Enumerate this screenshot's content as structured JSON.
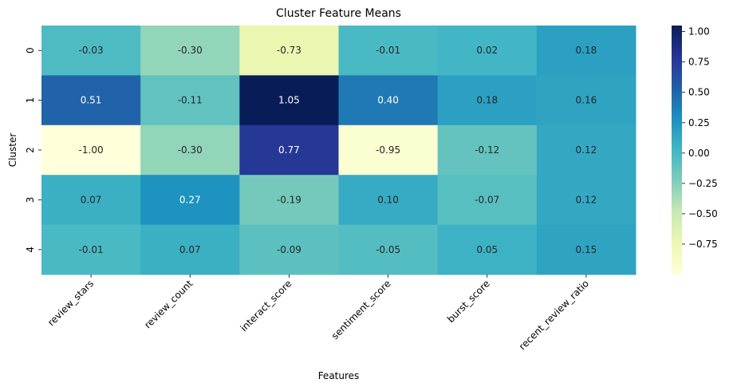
{
  "chart_data": {
    "type": "heatmap",
    "title": "Cluster Feature Means",
    "xlabel": "Features",
    "ylabel": "Cluster",
    "x_categories": [
      "review_stars",
      "review_count",
      "interact_score",
      "sentiment_score",
      "burst_score",
      "recent_review_ratio"
    ],
    "y_categories": [
      "0",
      "1",
      "2",
      "3",
      "4"
    ],
    "values": [
      [
        -0.03,
        -0.3,
        -0.73,
        -0.01,
        0.02,
        0.18
      ],
      [
        0.51,
        -0.11,
        1.05,
        0.4,
        0.18,
        0.16
      ],
      [
        -1.0,
        -0.3,
        0.77,
        -0.95,
        -0.12,
        0.12
      ],
      [
        0.07,
        0.27,
        -0.19,
        0.1,
        -0.07,
        0.12
      ],
      [
        -0.01,
        0.07,
        -0.09,
        -0.05,
        0.05,
        0.15
      ]
    ],
    "cell_labels": [
      [
        "-0.03",
        "-0.30",
        "-0.73",
        "-0.01",
        "0.02",
        "0.18"
      ],
      [
        "0.51",
        "-0.11",
        "1.05",
        "0.40",
        "0.18",
        "0.16"
      ],
      [
        "-1.00",
        "-0.30",
        "0.77",
        "-0.95",
        "-0.12",
        "0.12"
      ],
      [
        "0.07",
        "0.27",
        "-0.19",
        "0.10",
        "-0.07",
        "0.12"
      ],
      [
        "-0.01",
        "0.07",
        "-0.09",
        "-0.05",
        "0.05",
        "0.15"
      ]
    ],
    "colormap": "YlGnBu",
    "value_range": [
      -1.0,
      1.05
    ],
    "colorbar_ticks": [
      -0.75,
      -0.5,
      -0.25,
      0.0,
      0.25,
      0.5,
      0.75,
      1.0
    ],
    "colorbar_tick_labels": [
      "−0.75",
      "−0.50",
      "−0.25",
      "0.00",
      "0.25",
      "0.50",
      "0.75",
      "1.00"
    ],
    "colorbar_position": "right",
    "grid": false
  }
}
